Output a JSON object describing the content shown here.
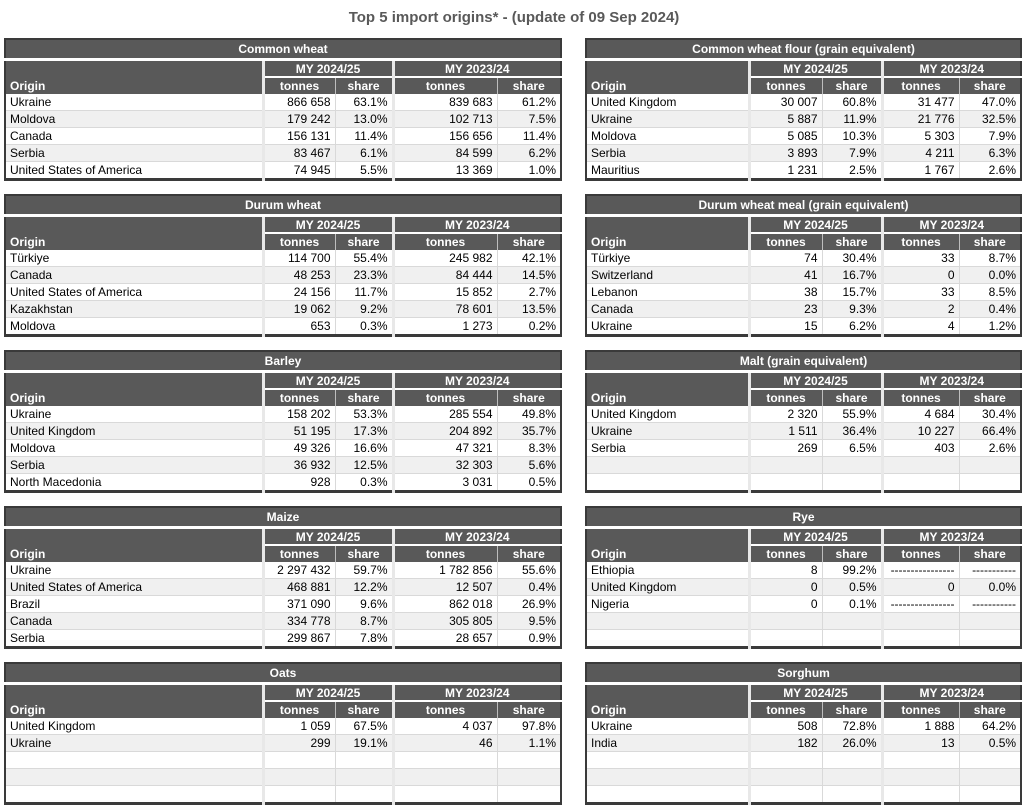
{
  "page": {
    "title": "Top 5 import origins* - (update of 09 Sep 2024)"
  },
  "colors": {
    "header_bg": "#595959",
    "header_text": "#ffffff",
    "row_alt_bg": "#f0f0f0",
    "outer_border": "#3a3a3a",
    "divider_band": "#e8e8e8",
    "title_text": "#595959"
  },
  "table_headers": {
    "origin": "Origin",
    "period_current": "MY 2024/25",
    "period_previous": "MY 2023/24",
    "tonnes": "tonnes",
    "share": "share"
  },
  "tables": [
    {
      "title": "Common wheat",
      "side": "left",
      "rows": [
        [
          "Ukraine",
          "866 658",
          "63.1%",
          "839 683",
          "61.2%"
        ],
        [
          "Moldova",
          "179 242",
          "13.0%",
          "102 713",
          "7.5%"
        ],
        [
          "Canada",
          "156 131",
          "11.4%",
          "156 656",
          "11.4%"
        ],
        [
          "Serbia",
          "83 467",
          "6.1%",
          "84 599",
          "6.2%"
        ],
        [
          "United States of America",
          "74 945",
          "5.5%",
          "13 369",
          "1.0%"
        ]
      ]
    },
    {
      "title": "Common wheat flour (grain equivalent)",
      "side": "right",
      "rows": [
        [
          "United Kingdom",
          "30 007",
          "60.8%",
          "31 477",
          "47.0%"
        ],
        [
          "Ukraine",
          "5 887",
          "11.9%",
          "21 776",
          "32.5%"
        ],
        [
          "Moldova",
          "5 085",
          "10.3%",
          "5 303",
          "7.9%"
        ],
        [
          "Serbia",
          "3 893",
          "7.9%",
          "4 211",
          "6.3%"
        ],
        [
          "Mauritius",
          "1 231",
          "2.5%",
          "1 767",
          "2.6%"
        ]
      ]
    },
    {
      "title": "Durum wheat",
      "side": "left",
      "rows": [
        [
          "Türkiye",
          "114 700",
          "55.4%",
          "245 982",
          "42.1%"
        ],
        [
          "Canada",
          "48 253",
          "23.3%",
          "84 444",
          "14.5%"
        ],
        [
          "United States of America",
          "24 156",
          "11.7%",
          "15 852",
          "2.7%"
        ],
        [
          "Kazakhstan",
          "19 062",
          "9.2%",
          "78 601",
          "13.5%"
        ],
        [
          "Moldova",
          "653",
          "0.3%",
          "1 273",
          "0.2%"
        ]
      ]
    },
    {
      "title": "Durum wheat meal (grain equivalent)",
      "side": "right",
      "rows": [
        [
          "Türkiye",
          "74",
          "30.4%",
          "33",
          "8.7%"
        ],
        [
          "Switzerland",
          "41",
          "16.7%",
          "0",
          "0.0%"
        ],
        [
          "Lebanon",
          "38",
          "15.7%",
          "33",
          "8.5%"
        ],
        [
          "Canada",
          "23",
          "9.3%",
          "2",
          "0.4%"
        ],
        [
          "Ukraine",
          "15",
          "6.2%",
          "4",
          "1.2%"
        ]
      ]
    },
    {
      "title": "Barley",
      "side": "left",
      "rows": [
        [
          "Ukraine",
          "158 202",
          "53.3%",
          "285 554",
          "49.8%"
        ],
        [
          "United Kingdom",
          "51 195",
          "17.3%",
          "204 892",
          "35.7%"
        ],
        [
          "Moldova",
          "49 326",
          "16.6%",
          "47 321",
          "8.3%"
        ],
        [
          "Serbia",
          "36 932",
          "12.5%",
          "32 303",
          "5.6%"
        ],
        [
          "North Macedonia",
          "928",
          "0.3%",
          "3 031",
          "0.5%"
        ]
      ]
    },
    {
      "title": "Malt (grain equivalent)",
      "side": "right",
      "rows": [
        [
          "United Kingdom",
          "2 320",
          "55.9%",
          "4 684",
          "30.4%"
        ],
        [
          "Ukraine",
          "1 511",
          "36.4%",
          "10 227",
          "66.4%"
        ],
        [
          "Serbia",
          "269",
          "6.5%",
          "403",
          "2.6%"
        ],
        [
          "",
          "",
          "",
          "",
          ""
        ],
        [
          "",
          "",
          "",
          "",
          ""
        ]
      ]
    },
    {
      "title": "Maize",
      "side": "left",
      "rows": [
        [
          "Ukraine",
          "2 297 432",
          "59.7%",
          "1 782 856",
          "55.6%"
        ],
        [
          "United States of America",
          "468 881",
          "12.2%",
          "12 507",
          "0.4%"
        ],
        [
          "Brazil",
          "371 090",
          "9.6%",
          "862 018",
          "26.9%"
        ],
        [
          "Canada",
          "334 778",
          "8.7%",
          "305 805",
          "9.5%"
        ],
        [
          "Serbia",
          "299 867",
          "7.8%",
          "28 657",
          "0.9%"
        ]
      ]
    },
    {
      "title": "Rye",
      "side": "right",
      "rows": [
        [
          "Ethiopia",
          "8",
          "99.2%",
          "----------------",
          "-----------"
        ],
        [
          "United Kingdom",
          "0",
          "0.5%",
          "0",
          "0.0%"
        ],
        [
          "Nigeria",
          "0",
          "0.1%",
          "----------------",
          "-----------"
        ],
        [
          "",
          "",
          "",
          "",
          ""
        ],
        [
          "",
          "",
          "",
          "",
          ""
        ]
      ]
    },
    {
      "title": "Oats",
      "side": "left",
      "rows": [
        [
          "United Kingdom",
          "1 059",
          "67.5%",
          "4 037",
          "97.8%"
        ],
        [
          "Ukraine",
          "299",
          "19.1%",
          "46",
          "1.1%"
        ],
        [
          "",
          "",
          "",
          "",
          ""
        ],
        [
          "",
          "",
          "",
          "",
          ""
        ],
        [
          "",
          "",
          "",
          "",
          ""
        ]
      ]
    },
    {
      "title": "Sorghum",
      "side": "right",
      "rows": [
        [
          "Ukraine",
          "508",
          "72.8%",
          "1 888",
          "64.2%"
        ],
        [
          "India",
          "182",
          "26.0%",
          "13",
          "0.5%"
        ],
        [
          "",
          "",
          "",
          "",
          ""
        ],
        [
          "",
          "",
          "",
          "",
          ""
        ],
        [
          "",
          "",
          "",
          "",
          ""
        ]
      ]
    }
  ]
}
